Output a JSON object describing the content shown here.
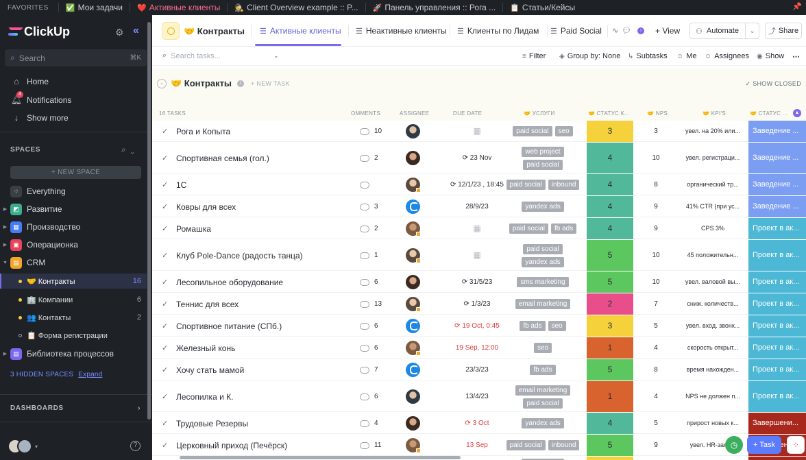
{
  "favorites": {
    "title": "FAVORITES",
    "items": [
      {
        "icon": "✅",
        "label": "Мои задачи"
      },
      {
        "icon": "❤️",
        "label": "Активные клиенты"
      },
      {
        "icon": "🕵",
        "label": "Client Overview example :: P..."
      },
      {
        "icon": "🚀",
        "label": "Панель управления :: Рога ..."
      },
      {
        "icon": "📋",
        "label": "Статьи/Кейсы"
      }
    ]
  },
  "sidebar": {
    "logo": "ClickUp",
    "search_placeholder": "Search",
    "search_shortcut": "⌘K",
    "nav": [
      {
        "label": "Home"
      },
      {
        "label": "Notifications",
        "badge": "4"
      },
      {
        "label": "Show more"
      }
    ],
    "spaces_title": "SPACES",
    "new_space": "+ NEW SPACE",
    "spaces": [
      {
        "label": "Everything",
        "color": "#3a3f46"
      },
      {
        "label": "Развитие",
        "color": "#3cae8f"
      },
      {
        "label": "Производство",
        "color": "#4a7bf7"
      },
      {
        "label": "Операционка",
        "color": "#e8435b"
      },
      {
        "label": "CRM",
        "color": "#f2a62c"
      }
    ],
    "crm_lists": [
      {
        "label": "🤝 Контракты",
        "count": "16"
      },
      {
        "label": "🏢 Компании",
        "count": "6"
      },
      {
        "label": "👥 Контакты",
        "count": "2"
      },
      {
        "label": "📋 Форма регистрации",
        "count": ""
      }
    ],
    "library": {
      "label": "Библиотека процессов",
      "color": "#7b68ee"
    },
    "hidden_spaces": "3 HIDDEN SPACES",
    "expand": "Expand",
    "dashboards": "DASHBOARDS"
  },
  "header": {
    "title": "🤝 Контракты",
    "tabs": [
      {
        "label": "Активные клиенты"
      },
      {
        "label": "Неактивные клиенты"
      },
      {
        "label": "Клиенты по Лидам"
      },
      {
        "label": "Paid Social"
      }
    ],
    "view_button": "+ View",
    "automate": "Automate",
    "share": "Share"
  },
  "toolbar": {
    "search_placeholder": "Search tasks...",
    "filter": "Filter",
    "group_by": "Group by: None",
    "subtasks": "Subtasks",
    "me": "Me",
    "assignees": "Assignees",
    "show": "Show"
  },
  "group": {
    "title": "🤝 Контракты",
    "new_task": "+ NEW TASK",
    "show_closed": "✓ SHOW CLOSED",
    "task_count": "16 TASKS",
    "columns": {
      "comments": "OMMENTS",
      "assignee": "ASSIGNEE",
      "due_date": "DUE DATE",
      "services": "🤝 УСЛУГИ",
      "status_k": "🤝 СТАТУС К...",
      "nps": "🤝 NPS",
      "kpi": "🤝 KPI'S",
      "status_2": "🤝 СТАТУС ..."
    }
  },
  "rows": [
    {
      "name": "Рога и Копыта",
      "comments": "10",
      "avatar": "photo4",
      "due": "",
      "due_style": "cal",
      "tags": [
        [
          "paid social",
          "seo"
        ]
      ],
      "status1": "3",
      "status1_color": "#f5d23c",
      "nps": "3",
      "kpi": "увел. на 20% или...",
      "status2": "Заведение ...",
      "status2_color": "#7b9ef2",
      "h": 31
    },
    {
      "name": "Спортивная семья (гол.)",
      "comments": "2",
      "avatar": "photo2",
      "due": "⟳ 23 Nov",
      "due_style": "",
      "tags": [
        [
          "web project"
        ],
        [
          "paid social"
        ]
      ],
      "status1": "4",
      "status1_color": "#52b89a",
      "nps": "10",
      "kpi": "увел. регистраци...",
      "status2": "Заведение ...",
      "status2_color": "#7b9ef2",
      "h": 45
    },
    {
      "name": "1С",
      "comments": "",
      "avatar": "photo1",
      "due": "⟳ 12/1/23 , 18:45",
      "due_style": "",
      "tags": [
        [
          "paid social",
          "inbound"
        ]
      ],
      "status1": "4",
      "status1_color": "#52b89a",
      "nps": "8",
      "kpi": "органический тр...",
      "status2": "Заведение ...",
      "status2_color": "#7b9ef2",
      "h": 31
    },
    {
      "name": "Ковры для всех",
      "comments": "3",
      "avatar": "blue",
      "due": "28/9/23",
      "due_style": "",
      "tags": [
        [
          "yandex ads"
        ]
      ],
      "status1": "4",
      "status1_color": "#52b89a",
      "nps": "9",
      "kpi": "41% CTR (при ус...",
      "status2": "Заведение ...",
      "status2_color": "#7b9ef2",
      "h": 31
    },
    {
      "name": "Ромашка",
      "comments": "2",
      "avatar": "photo3",
      "due": "",
      "due_style": "cal",
      "tags": [
        [
          "paid social",
          "fb ads"
        ]
      ],
      "status1": "4",
      "status1_color": "#52b89a",
      "nps": "9",
      "kpi": "CPS 3%",
      "status2": "Проект в ак...",
      "status2_color": "#4cb8d6",
      "h": 31
    },
    {
      "name": "Клуб Pole-Dance (радость танца)",
      "comments": "1",
      "avatar": "photo1",
      "due": "",
      "due_style": "cal",
      "tags": [
        [
          "paid social"
        ],
        [
          "yandex ads"
        ]
      ],
      "status1": "5",
      "status1_color": "#5cc75f",
      "nps": "10",
      "kpi": "45 положительн...",
      "status2": "Проект в ак...",
      "status2_color": "#4cb8d6",
      "h": 45
    },
    {
      "name": "Лесопильное оборудование",
      "comments": "6",
      "avatar": "photo2",
      "due": "⟳ 31/5/23",
      "due_style": "",
      "tags": [
        [
          "sms marketing"
        ]
      ],
      "status1": "5",
      "status1_color": "#5cc75f",
      "nps": "10",
      "kpi": "увел. валовой вы...",
      "status2": "Проект в ак...",
      "status2_color": "#4cb8d6",
      "h": 31
    },
    {
      "name": "Теннис для всех",
      "comments": "13",
      "avatar": "photo1",
      "due": "⟳ 1/3/23",
      "due_style": "",
      "tags": [
        [
          "email marketing"
        ]
      ],
      "status1": "2",
      "status1_color": "#e84f8a",
      "nps": "7",
      "kpi": "сниж. количеств...",
      "status2": "Проект в ак...",
      "status2_color": "#4cb8d6",
      "h": 31
    },
    {
      "name": "Спортивное питание (СПб.)",
      "comments": "6",
      "avatar": "blue",
      "due": "⟳ 19 Oct, 0:45",
      "due_style": "red",
      "tags": [
        [
          "fb ads",
          "seo"
        ]
      ],
      "status1": "3",
      "status1_color": "#f5d23c",
      "nps": "5",
      "kpi": "увел. вход. звонк...",
      "status2": "Проект в ак...",
      "status2_color": "#4cb8d6",
      "h": 31
    },
    {
      "name": "Железный конь",
      "comments": "6",
      "avatar": "photo3",
      "due": "19 Sep, 12:00",
      "due_style": "red",
      "tags": [
        [
          "seo"
        ]
      ],
      "status1": "1",
      "status1_color": "#d9632e",
      "nps": "4",
      "kpi": "скорость открыт...",
      "status2": "Проект в ак...",
      "status2_color": "#4cb8d6",
      "h": 31
    },
    {
      "name": "Хочу стать мамой",
      "comments": "7",
      "avatar": "blue",
      "due": "23/3/23",
      "due_style": "",
      "tags": [
        [
          "fb ads"
        ]
      ],
      "status1": "5",
      "status1_color": "#5cc75f",
      "nps": "8",
      "kpi": "время нахожден...",
      "status2": "Проект в ак...",
      "status2_color": "#4cb8d6",
      "h": 31
    },
    {
      "name": "Лесопилка и К.",
      "comments": "6",
      "avatar": "photo4",
      "due": "13/4/23",
      "due_style": "",
      "tags": [
        [
          "email marketing"
        ],
        [
          "paid social"
        ]
      ],
      "status1": "1",
      "status1_color": "#d9632e",
      "nps": "4",
      "kpi": "NPS не должен п...",
      "status2": "Проект в ак...",
      "status2_color": "#4cb8d6",
      "h": 45
    },
    {
      "name": "Трудовые Резервы",
      "comments": "4",
      "avatar": "photo2",
      "due": "⟳ 3 Oct",
      "due_style": "red",
      "tags": [
        [
          "yandex ads"
        ]
      ],
      "status1": "4",
      "status1_color": "#52b89a",
      "nps": "5",
      "kpi": "прирост новых к...",
      "status2": "Завершени...",
      "status2_color": "#a8281e",
      "h": 31
    },
    {
      "name": "Церковный приход (Печёрск)",
      "comments": "11",
      "avatar": "photo3",
      "due": "13 Sep",
      "due_style": "red",
      "tags": [
        [
          "paid social",
          "inbound"
        ]
      ],
      "status1": "5",
      "status1_color": "#5cc75f",
      "nps": "9",
      "kpi": "увел. HR-заяв...",
      "status2": "Завершени...",
      "status2_color": "#a8281e",
      "h": 31
    },
    {
      "name": "",
      "comments": "",
      "avatar": "",
      "due": "",
      "due_style": "",
      "tags": [
        [
          "web project"
        ]
      ],
      "status1": "",
      "status1_color": "#f5d23c",
      "nps": "",
      "kpi": "",
      "status2": "",
      "status2_color": "#a8281e",
      "h": 20
    }
  ],
  "fab": {
    "task": "+ Task"
  }
}
